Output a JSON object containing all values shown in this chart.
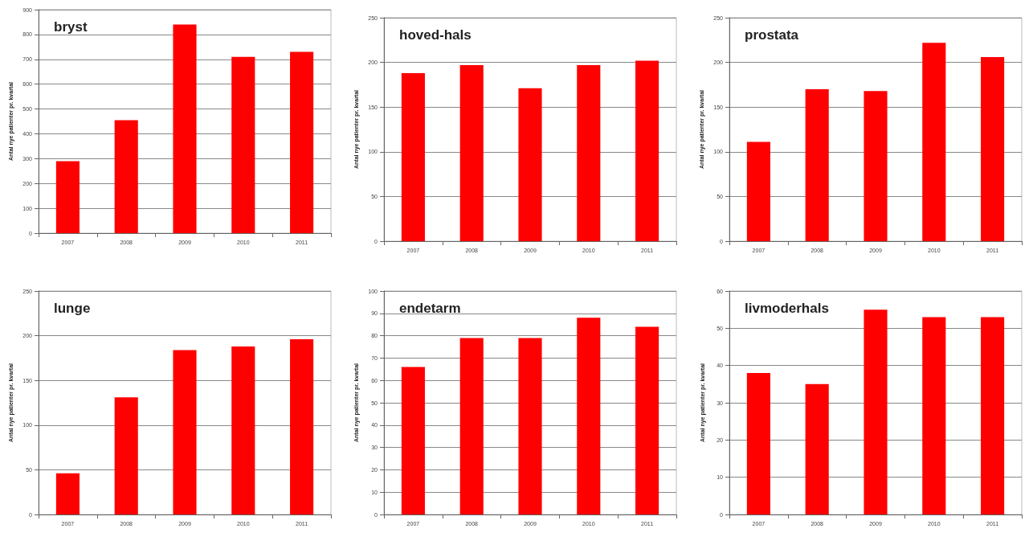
{
  "chart_data": [
    {
      "type": "bar",
      "title": "bryst",
      "ylabel": "Antal nye patienter pr. kvartal",
      "categories": [
        "2007",
        "2008",
        "2009",
        "2010",
        "2011"
      ],
      "values": [
        290,
        455,
        840,
        710,
        730
      ],
      "color": "#ff0000",
      "ylim": [
        0,
        900
      ],
      "yticks": [
        0,
        100,
        200,
        300,
        400,
        500,
        600,
        700,
        800,
        900
      ],
      "grid": "y"
    },
    {
      "type": "bar",
      "title": "hoved-hals",
      "ylabel": "Antal nye patienter pr. kvartal",
      "categories": [
        "2007",
        "2008",
        "2009",
        "2010",
        "2011"
      ],
      "values": [
        188,
        197,
        171,
        197,
        202
      ],
      "color": "#ff0000",
      "ylim": [
        0,
        250
      ],
      "yticks": [
        0,
        50,
        100,
        150,
        200,
        250
      ],
      "grid": "y"
    },
    {
      "type": "bar",
      "title": "prostata",
      "ylabel": "Antal nye patienter pr. kvartal",
      "categories": [
        "2007",
        "2008",
        "2009",
        "2010",
        "2011"
      ],
      "values": [
        111,
        170,
        168,
        222,
        206
      ],
      "color": "#ff0000",
      "ylim": [
        0,
        250
      ],
      "yticks": [
        0,
        50,
        100,
        150,
        200,
        250
      ],
      "grid": "y"
    },
    {
      "type": "bar",
      "title": "lunge",
      "ylabel": "Antal nye patienter pr. kvartal",
      "categories": [
        "2007",
        "2008",
        "2009",
        "2010",
        "2011"
      ],
      "values": [
        46,
        131,
        184,
        188,
        196
      ],
      "color": "#ff0000",
      "ylim": [
        0,
        250
      ],
      "yticks": [
        0,
        50,
        100,
        150,
        200,
        250
      ],
      "grid": "y"
    },
    {
      "type": "bar",
      "title": "endetarm",
      "ylabel": "Antal nye patienter pr. kvartal",
      "categories": [
        "2007",
        "2008",
        "2009",
        "2010",
        "2011"
      ],
      "values": [
        66,
        79,
        79,
        88,
        84
      ],
      "color": "#ff0000",
      "ylim": [
        0,
        100
      ],
      "yticks": [
        0,
        10,
        20,
        30,
        40,
        50,
        60,
        70,
        80,
        90,
        100
      ],
      "grid": "y"
    },
    {
      "type": "bar",
      "title": "livmoderhals",
      "ylabel": "Antal nye patienter pr. kvartal",
      "categories": [
        "2007",
        "2008",
        "2009",
        "2010",
        "2011"
      ],
      "values": [
        38,
        35,
        55,
        53,
        53
      ],
      "color": "#ff0000",
      "ylim": [
        0,
        60
      ],
      "yticks": [
        0,
        10,
        20,
        30,
        40,
        50,
        60
      ],
      "grid": "y"
    }
  ]
}
